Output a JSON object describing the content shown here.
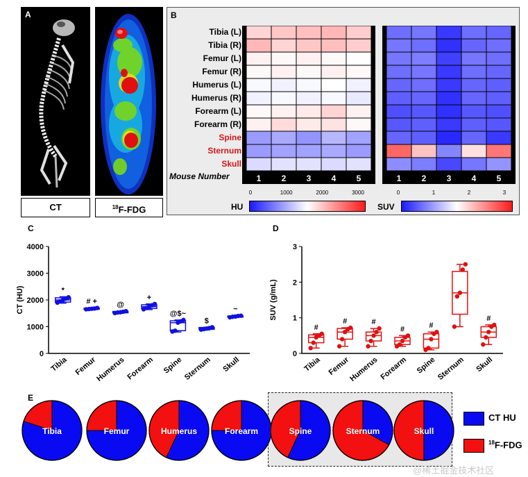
{
  "panels": {
    "a": "A",
    "b": "B",
    "c": "C",
    "d": "D",
    "e": "E"
  },
  "panel_a": {
    "ct_caption": "CT",
    "pet_caption_sup": "18",
    "pet_caption": "F-FDG"
  },
  "panel_b": {
    "rows": [
      {
        "label": "Tibia (L)",
        "highlight": false,
        "hu": [
          1900,
          2000,
          2050,
          2100,
          1950
        ],
        "suv": [
          0.55,
          0.6,
          0.2,
          0.55,
          0.5
        ]
      },
      {
        "label": "Tibia (R)",
        "highlight": false,
        "hu": [
          2100,
          1900,
          2000,
          2050,
          1950
        ],
        "suv": [
          0.6,
          0.55,
          0.15,
          0.5,
          0.55
        ]
      },
      {
        "label": "Femur (L)",
        "highlight": false,
        "hu": [
          1700,
          1650,
          1700,
          1650,
          1600
        ],
        "suv": [
          0.6,
          0.65,
          0.25,
          0.6,
          0.55
        ]
      },
      {
        "label": "Femur (R)",
        "highlight": false,
        "hu": [
          1650,
          1700,
          1650,
          1700,
          1650
        ],
        "suv": [
          0.55,
          0.6,
          0.2,
          0.55,
          0.5
        ]
      },
      {
        "label": "Humerus (L)",
        "highlight": false,
        "hu": [
          1550,
          1500,
          1550,
          1600,
          1500
        ],
        "suv": [
          0.5,
          0.55,
          0.2,
          0.5,
          0.45
        ]
      },
      {
        "label": "Humerus (R)",
        "highlight": false,
        "hu": [
          1500,
          1550,
          1500,
          1550,
          1450
        ],
        "suv": [
          0.45,
          0.5,
          0.15,
          0.5,
          0.45
        ]
      },
      {
        "label": "Forearm (L)",
        "highlight": false,
        "hu": [
          1650,
          1700,
          1750,
          1900,
          1700
        ],
        "suv": [
          0.35,
          0.4,
          0.15,
          0.4,
          0.35
        ]
      },
      {
        "label": "Forearm (R)",
        "highlight": false,
        "hu": [
          1700,
          1850,
          1750,
          1800,
          1650
        ],
        "suv": [
          0.4,
          0.45,
          0.2,
          0.45,
          0.4
        ]
      },
      {
        "label": "Spine",
        "highlight": true,
        "hu": [
          900,
          1000,
          850,
          1100,
          950
        ],
        "suv": [
          0.5,
          0.45,
          0.1,
          0.5,
          0.2
        ]
      },
      {
        "label": "Sternum",
        "highlight": true,
        "hu": [
          900,
          950,
          950,
          1000,
          900
        ],
        "suv": [
          2.5,
          1.9,
          0.7,
          1.7,
          2.4
        ]
      },
      {
        "label": "Skull",
        "highlight": true,
        "hu": [
          1350,
          1400,
          1400,
          1350,
          1400
        ],
        "suv": [
          0.75,
          0.65,
          0.3,
          0.6,
          0.8
        ]
      }
    ],
    "mouse_number_label": "Mouse Number",
    "mouse_numbers": [
      "1",
      "2",
      "3",
      "4",
      "5"
    ],
    "hu_colorbar": {
      "name": "HU",
      "ticks": [
        "0",
        "1000",
        "2000",
        "3000"
      ],
      "range": [
        0,
        3200
      ]
    },
    "suv_colorbar": {
      "name": "SUV",
      "ticks": [
        "0",
        "1",
        "2",
        "3"
      ],
      "range": [
        0,
        3
      ]
    }
  },
  "chart_data": [
    {
      "type": "box",
      "panel": "C",
      "color": "#1010e0",
      "ylabel": "CT (HU)",
      "ylim": [
        0,
        4000
      ],
      "yticks": [
        "0",
        "1000",
        "2000",
        "3000",
        "4000"
      ],
      "categories": [
        "Tibia",
        "Femur",
        "Humerus",
        "Forearm",
        "Spine",
        "Sternum",
        "Skull"
      ],
      "boxes": [
        {
          "min": 1880,
          "q1": 1920,
          "median": 2000,
          "q3": 2080,
          "max": 2120,
          "points": [
            1900,
            1950,
            2000,
            2050,
            2100
          ]
        },
        {
          "min": 1640,
          "q1": 1650,
          "median": 1670,
          "q3": 1690,
          "max": 1700,
          "points": [
            1650,
            1660,
            1670,
            1680,
            1700
          ]
        },
        {
          "min": 1510,
          "q1": 1520,
          "median": 1540,
          "q3": 1570,
          "max": 1580,
          "points": [
            1510,
            1530,
            1540,
            1560,
            1580
          ]
        },
        {
          "min": 1640,
          "q1": 1680,
          "median": 1750,
          "q3": 1820,
          "max": 1850,
          "points": [
            1650,
            1700,
            1750,
            1800,
            1850
          ]
        },
        {
          "min": 800,
          "q1": 850,
          "median": 1150,
          "q3": 1220,
          "max": 1250,
          "points": [
            820,
            850,
            1150,
            1200,
            1250
          ]
        },
        {
          "min": 880,
          "q1": 900,
          "median": 930,
          "q3": 970,
          "max": 980,
          "points": [
            890,
            910,
            930,
            950,
            980
          ]
        },
        {
          "min": 1350,
          "q1": 1360,
          "median": 1380,
          "q3": 1400,
          "max": 1410,
          "points": [
            1350,
            1370,
            1380,
            1400,
            1410
          ]
        }
      ],
      "annotations": [
        "*",
        "# +",
        "@",
        "+",
        "@$~",
        "$",
        "~"
      ]
    },
    {
      "type": "box",
      "panel": "D",
      "color": "#e01010",
      "ylabel": "SUV (g/mL)",
      "ylim": [
        0,
        3
      ],
      "yticks": [
        "0",
        "1",
        "2",
        "3"
      ],
      "categories": [
        "Tibia",
        "Femur",
        "Humerus",
        "Forearm",
        "Spine",
        "Sternum",
        "Skull"
      ],
      "boxes": [
        {
          "min": 0.15,
          "q1": 0.3,
          "median": 0.45,
          "q3": 0.52,
          "max": 0.55,
          "points": [
            0.15,
            0.3,
            0.45,
            0.5,
            0.55
          ]
        },
        {
          "min": 0.2,
          "q1": 0.4,
          "median": 0.6,
          "q3": 0.7,
          "max": 0.72,
          "points": [
            0.2,
            0.4,
            0.6,
            0.68,
            0.72
          ]
        },
        {
          "min": 0.2,
          "q1": 0.35,
          "median": 0.5,
          "q3": 0.6,
          "max": 0.7,
          "points": [
            0.2,
            0.35,
            0.5,
            0.6,
            0.7
          ]
        },
        {
          "min": 0.2,
          "q1": 0.25,
          "median": 0.35,
          "q3": 0.45,
          "max": 0.5,
          "points": [
            0.2,
            0.25,
            0.35,
            0.45,
            0.5
          ]
        },
        {
          "min": 0.1,
          "q1": 0.15,
          "median": 0.4,
          "q3": 0.55,
          "max": 0.6,
          "points": [
            0.1,
            0.15,
            0.4,
            0.55,
            0.6
          ]
        },
        {
          "min": 0.75,
          "q1": 1.1,
          "median": 1.7,
          "q3": 2.3,
          "max": 2.5,
          "points": [
            0.75,
            1.6,
            1.7,
            2.35,
            2.5
          ]
        },
        {
          "min": 0.25,
          "q1": 0.45,
          "median": 0.6,
          "q3": 0.75,
          "max": 0.8,
          "points": [
            0.25,
            0.45,
            0.6,
            0.75,
            0.8
          ]
        }
      ],
      "annotations": [
        "#",
        "#",
        "#",
        "#",
        "#",
        "",
        "#"
      ]
    },
    {
      "type": "pie",
      "panel": "E",
      "series": [
        {
          "label": "Tibia",
          "ct_hu": 0.8,
          "fdg": 0.2
        },
        {
          "label": "Femur",
          "ct_hu": 0.75,
          "fdg": 0.25
        },
        {
          "label": "Humerus",
          "ct_hu": 0.57,
          "fdg": 0.43
        },
        {
          "label": "Forearm",
          "ct_hu": 0.75,
          "fdg": 0.25
        },
        {
          "label": "Spine",
          "ct_hu": 0.57,
          "fdg": 0.43
        },
        {
          "label": "Sternum",
          "ct_hu": 0.33,
          "fdg": 0.67
        },
        {
          "label": "Skull",
          "ct_hu": 0.5,
          "fdg": 0.5
        }
      ],
      "highlighted": [
        "Spine",
        "Sternum",
        "Skull"
      ],
      "legend": {
        "ct_label": "CT HU",
        "fdg_sup": "18",
        "fdg_label": "F-FDG",
        "ct_color": "#0a0af2",
        "fdg_color": "#f21010"
      }
    }
  ],
  "watermark": "@稀土掘金技术社区"
}
